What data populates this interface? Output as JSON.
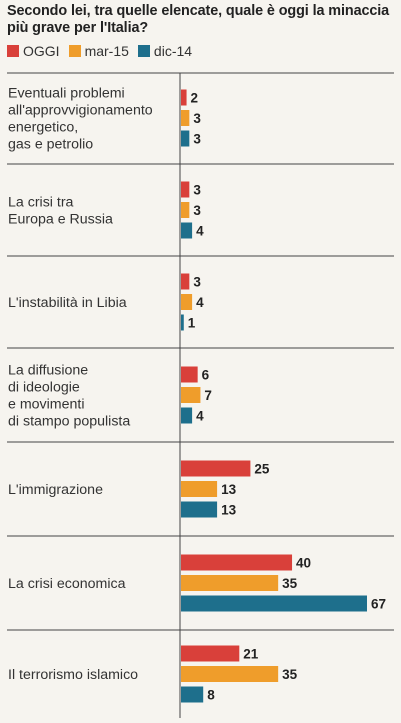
{
  "chart_data": {
    "type": "bar",
    "orientation": "horizontal",
    "title": "Secondo lei, tra quelle elencate, quale è oggi la minaccia più grave per l'Italia?",
    "categories": [
      "Eventuali problemi all'approvvigionamento energetico, gas e petrolio",
      "La crisi tra Europa e Russia",
      "L'instabilità in Libia",
      "La diffusione di ideologie e movimenti di stampo populista",
      "L'immigrazione",
      "La crisi economica",
      "Il terrorismo islamico"
    ],
    "category_lines": [
      [
        "Eventuali problemi",
        "all'approvvigionamento",
        "energetico,",
        "gas e petrolio"
      ],
      [
        "La crisi tra",
        "Europa e Russia"
      ],
      [
        "L'instabilità in Libia"
      ],
      [
        "La diffusione",
        "di ideologie",
        "e movimenti",
        "di stampo populista"
      ],
      [
        "L'immigrazione"
      ],
      [
        "La crisi economica"
      ],
      [
        "Il terrorismo islamico"
      ]
    ],
    "series": [
      {
        "name": "OGGI",
        "color": "#d9403a",
        "values": [
          2,
          3,
          3,
          6,
          25,
          40,
          21
        ]
      },
      {
        "name": "mar-15",
        "color": "#ef9d2b",
        "values": [
          3,
          3,
          4,
          7,
          13,
          35,
          35
        ]
      },
      {
        "name": "dic-14",
        "color": "#1e6f8c",
        "values": [
          3,
          4,
          1,
          4,
          13,
          67,
          8
        ]
      }
    ],
    "xlim": [
      0,
      67
    ],
    "grid": false,
    "legend_position": "top-left"
  }
}
